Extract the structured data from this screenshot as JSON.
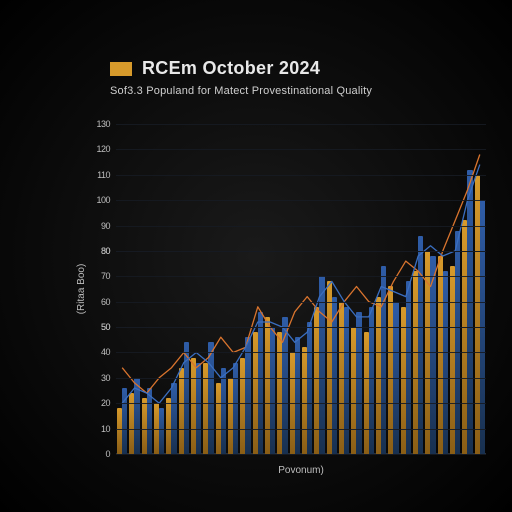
{
  "chart": {
    "type": "bar+line",
    "title": "RCEm October 2024",
    "subtitle": "Sof3.3 Populand for Matect Provestinational Quality",
    "legend_chip_color": "#d79a2b",
    "title_fontsize": 18,
    "subtitle_fontsize": 11,
    "background_gradient": [
      "#1a1a1a",
      "#000000"
    ],
    "y_axis_title": "(Ritaa Boo)",
    "x_axis_title": "Povonum)",
    "ylim": [
      0,
      130
    ],
    "y_ticks": [
      0,
      10,
      20,
      30,
      40,
      50,
      50,
      60,
      70,
      80,
      80,
      90,
      100,
      110,
      120,
      130
    ],
    "grid_color": "#161b22",
    "label_color": "#bfbfbf",
    "categories_count": 30,
    "series": {
      "gold_bars": {
        "color": "#d79a2b",
        "values": [
          18,
          24,
          22,
          20,
          22,
          34,
          38,
          36,
          28,
          30,
          38,
          48,
          54,
          48,
          40,
          42,
          58,
          68,
          60,
          50,
          48,
          62,
          66,
          58,
          72,
          80,
          78,
          74,
          92,
          110
        ]
      },
      "blue_bars": {
        "color": "#2f5da8",
        "values": [
          26,
          30,
          26,
          18,
          28,
          44,
          36,
          44,
          34,
          36,
          46,
          56,
          50,
          54,
          46,
          52,
          70,
          62,
          58,
          56,
          58,
          74,
          60,
          68,
          86,
          78,
          72,
          88,
          112,
          100
        ]
      }
    },
    "bar_group_width_ratio": 0.82,
    "lines": {
      "orange_line": {
        "color": "#d9742e",
        "stroke_width": 1.3,
        "values": [
          34,
          28,
          24,
          30,
          34,
          40,
          34,
          38,
          46,
          40,
          42,
          58,
          50,
          44,
          56,
          62,
          56,
          52,
          60,
          66,
          60,
          58,
          68,
          76,
          72,
          66,
          80,
          92,
          104,
          118
        ]
      },
      "blue_line": {
        "color": "#3a6ec0",
        "stroke_width": 1.3,
        "values": [
          20,
          26,
          24,
          20,
          26,
          36,
          40,
          36,
          30,
          34,
          42,
          52,
          52,
          50,
          44,
          48,
          62,
          68,
          60,
          54,
          54,
          66,
          64,
          62,
          78,
          82,
          78,
          80,
          100,
          114
        ]
      }
    }
  }
}
